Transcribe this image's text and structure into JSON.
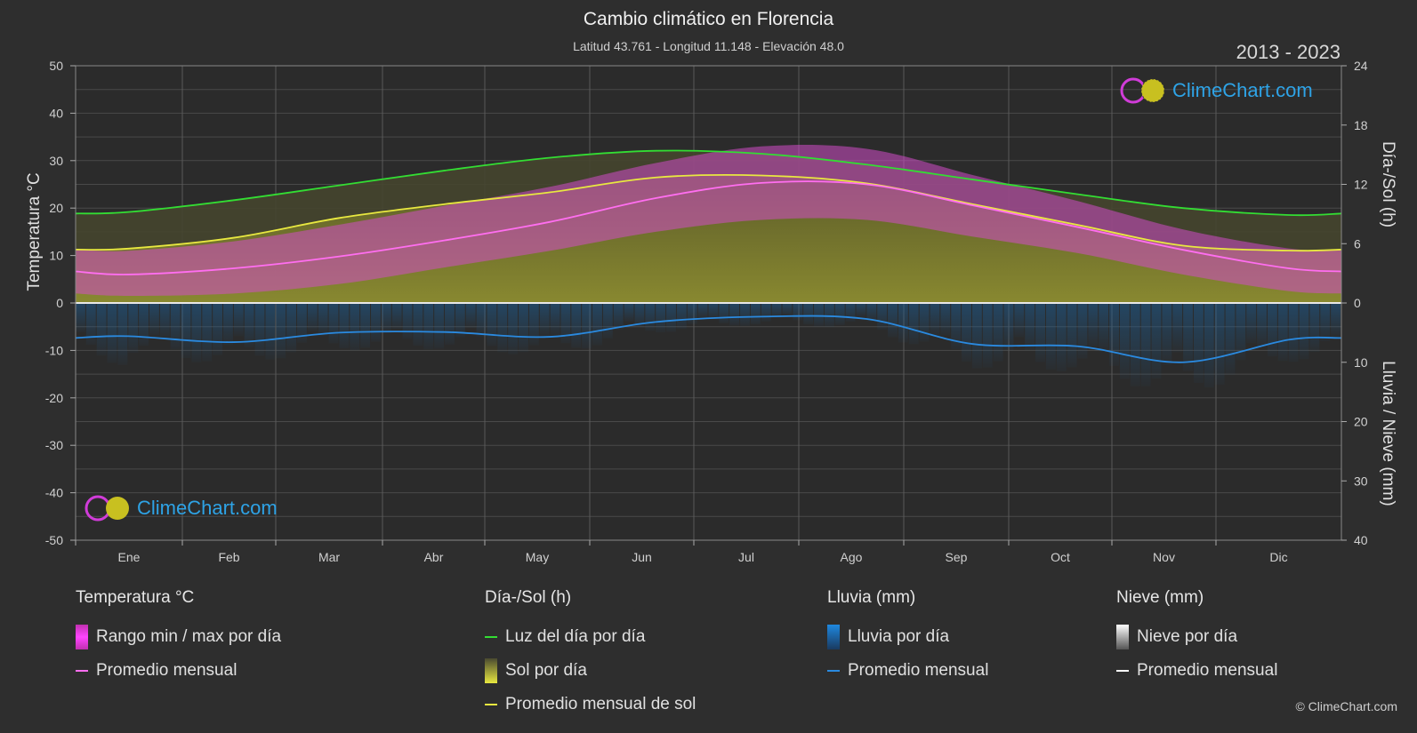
{
  "title": "Cambio climático en Florencia",
  "subtitle": "Latitud 43.761 - Longitud 11.148 - Elevación 48.0",
  "years": "2013 - 2023",
  "brand": "ClimeChart.com",
  "copyright": "© ClimeChart.com",
  "colors": {
    "background": "#2e2e2e",
    "temp_range": "#e040c8",
    "temp_avg": "#ff6ef0",
    "daylight": "#33dd33",
    "sunshine_fill": "#8c8c30",
    "sun_avg": "#e8e840",
    "rain": "#1e78c8",
    "rain_avg": "#2a8ae0",
    "snow": "#d8d8d8",
    "snow_avg": "#ffffff"
  },
  "legend": {
    "temperature": {
      "title": "Temperatura °C",
      "range": "Rango min / max por día",
      "avg": "Promedio mensual"
    },
    "sun": {
      "title": "Día-/Sol (h)",
      "daylight": "Luz del día por día",
      "sunshine": "Sol por día",
      "avg": "Promedio mensual de sol"
    },
    "rain": {
      "title": "Lluvia (mm)",
      "daily": "Lluvia por día",
      "avg": "Promedio mensual"
    },
    "snow": {
      "title": "Nieve (mm)",
      "daily": "Nieve por día",
      "avg": "Promedio mensual"
    }
  },
  "chart_data": {
    "type": "area",
    "x_axis": {
      "categories": [
        "Ene",
        "Feb",
        "Mar",
        "Abr",
        "May",
        "Jun",
        "Jul",
        "Ago",
        "Sep",
        "Oct",
        "Nov",
        "Dic"
      ]
    },
    "y_left": {
      "label": "Temperatura °C",
      "range": [
        -50,
        50
      ],
      "ticks": [
        50,
        40,
        30,
        20,
        10,
        0,
        -10,
        -20,
        -30,
        -40,
        -50
      ]
    },
    "y_right_top": {
      "label": "Día-/Sol (h)",
      "range": [
        0,
        24
      ],
      "ticks": [
        24,
        18,
        12,
        6,
        0
      ]
    },
    "y_right_bottom": {
      "label": "Lluvia / Nieve (mm)",
      "range": [
        0,
        40
      ],
      "ticks": [
        0,
        10,
        20,
        30,
        40
      ]
    },
    "grid": true,
    "series": [
      {
        "name": "Luz del día por día",
        "unit": "h",
        "values": [
          9.2,
          10.4,
          11.9,
          13.4,
          14.7,
          15.4,
          15.1,
          14.0,
          12.5,
          11.0,
          9.6,
          8.9
        ]
      },
      {
        "name": "Promedio mensual de sol",
        "unit": "h",
        "values": [
          5.5,
          6.6,
          8.6,
          10.0,
          11.2,
          12.7,
          12.9,
          12.1,
          10.0,
          7.9,
          5.8,
          5.3
        ]
      },
      {
        "name": "Promedio mensual",
        "group": "Temperatura °C",
        "unit": "°C",
        "values": [
          6.0,
          7.3,
          9.8,
          13.2,
          17.1,
          22.1,
          25.3,
          25.0,
          20.6,
          16.0,
          11.2,
          7.3
        ]
      },
      {
        "name": "Rango min / max por día",
        "group": "Temperatura °C",
        "unit": "°C",
        "min": [
          1.5,
          2.0,
          4.0,
          7.5,
          11.0,
          15.0,
          17.5,
          17.5,
          14.0,
          10.5,
          6.0,
          2.5
        ],
        "max": [
          11.0,
          13.0,
          16.5,
          20.5,
          24.5,
          29.5,
          33.0,
          32.5,
          27.0,
          21.5,
          15.5,
          11.5
        ]
      },
      {
        "name": "Promedio mensual",
        "group": "Lluvia (mm)",
        "unit": "mm",
        "values": [
          5.6,
          6.6,
          5.0,
          4.9,
          5.7,
          3.2,
          2.3,
          2.7,
          6.9,
          7.3,
          10.0,
          6.2
        ]
      }
    ]
  }
}
